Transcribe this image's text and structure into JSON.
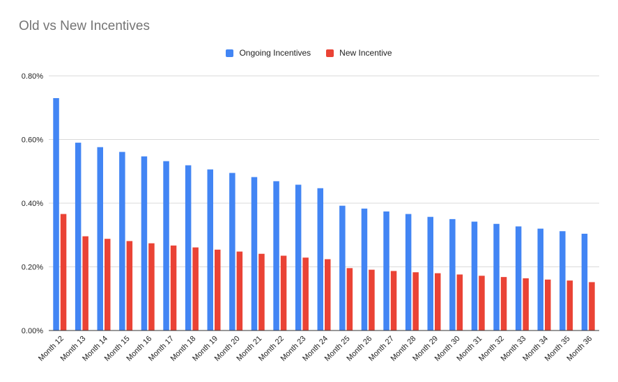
{
  "chart_data": {
    "type": "bar",
    "title": "Old vs New Incentives",
    "categories": [
      "Month 12",
      "Month 13",
      "Month 14",
      "Month 15",
      "Month 16",
      "Month 17",
      "Month 18",
      "Month 19",
      "Month 20",
      "Month 21",
      "Month 22",
      "Month 23",
      "Month 24",
      "Month 25",
      "Month 26",
      "Month 27",
      "Month 28",
      "Month 29",
      "Month 30",
      "Month 31",
      "Month 32",
      "Month 33",
      "Month 34",
      "Month 35",
      "Month 36"
    ],
    "series": [
      {
        "name": "Ongoing Incentives",
        "color": "#4285f4",
        "values": [
          0.73,
          0.59,
          0.576,
          0.561,
          0.547,
          0.532,
          0.519,
          0.506,
          0.495,
          0.482,
          0.469,
          0.458,
          0.447,
          0.392,
          0.383,
          0.374,
          0.366,
          0.357,
          0.35,
          0.342,
          0.335,
          0.327,
          0.32,
          0.312,
          0.304
        ]
      },
      {
        "name": "New Incentive",
        "color": "#ea4335",
        "values": [
          0.366,
          0.296,
          0.288,
          0.281,
          0.274,
          0.267,
          0.261,
          0.254,
          0.248,
          0.241,
          0.235,
          0.229,
          0.224,
          0.196,
          0.191,
          0.187,
          0.183,
          0.18,
          0.176,
          0.172,
          0.168,
          0.164,
          0.16,
          0.157,
          0.152
        ]
      }
    ],
    "ylim": [
      0,
      0.8
    ],
    "yticks": [
      0,
      0.2,
      0.4,
      0.6,
      0.8
    ],
    "ytick_labels": [
      "0.00%",
      "0.20%",
      "0.40%",
      "0.60%",
      "0.80%"
    ],
    "grid": true,
    "legend_position": "top-center",
    "xlabel": "",
    "ylabel": ""
  }
}
